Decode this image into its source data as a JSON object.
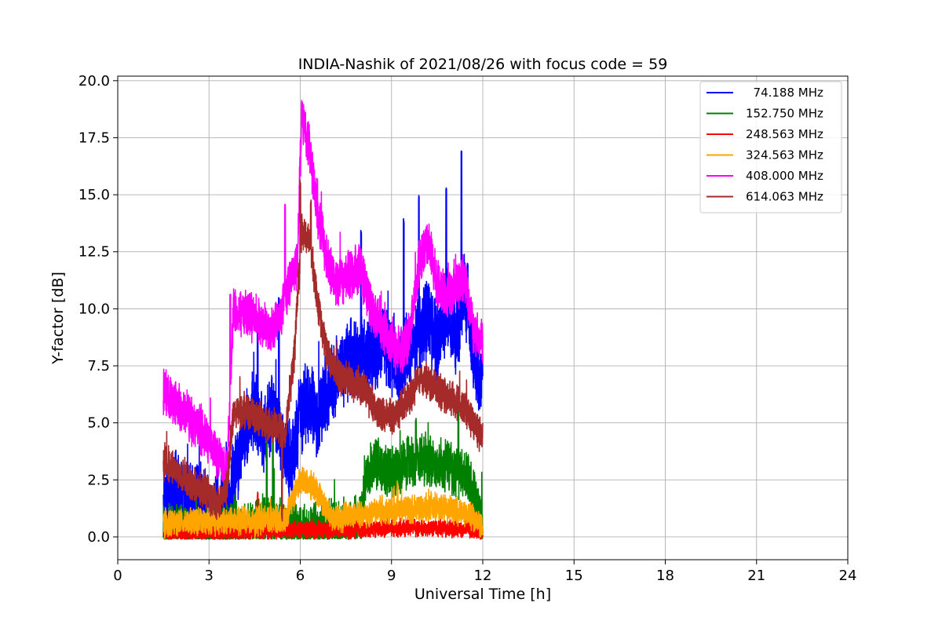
{
  "chart_data": {
    "type": "line",
    "title": "INDIA-Nashik of 2021/08/26 with focus code = 59",
    "xlabel": "Universal Time [h]",
    "ylabel": "Y-factor [dB]",
    "xlim": [
      0,
      24
    ],
    "ylim": [
      -1,
      20.2
    ],
    "xticks": [
      0,
      3,
      6,
      9,
      12,
      15,
      18,
      21,
      24
    ],
    "xtick_labels": [
      "0",
      "3",
      "6",
      "9",
      "12",
      "15",
      "18",
      "21",
      "24"
    ],
    "yticks": [
      0,
      2.5,
      5,
      7.5,
      10,
      12.5,
      15,
      17.5,
      20
    ],
    "ytick_labels": [
      "0.0",
      "2.5",
      "5.0",
      "7.5",
      "10.0",
      "12.5",
      "15.0",
      "17.5",
      "20.0"
    ],
    "grid": true,
    "legend_position": "top-right",
    "series": [
      {
        "name": "  74.188 MHz",
        "color": "#0000ff",
        "x": [
          1.5,
          2.0,
          2.5,
          3.0,
          3.3,
          3.6,
          3.9,
          4.2,
          4.5,
          4.8,
          5.1,
          5.4,
          5.7,
          6.0,
          6.3,
          6.6,
          6.9,
          7.2,
          7.5,
          7.8,
          8.1,
          8.4,
          8.7,
          9.0,
          9.3,
          9.6,
          9.9,
          10.2,
          10.5,
          10.8,
          11.1,
          11.4,
          11.7,
          12.0
        ],
        "y": [
          1.6,
          1.8,
          1.5,
          1.2,
          1.0,
          1.5,
          3.0,
          4.8,
          5.5,
          4.5,
          5.5,
          4.2,
          3.0,
          5.5,
          6.0,
          5.0,
          6.5,
          7.0,
          7.5,
          7.8,
          8.0,
          8.2,
          8.5,
          8.0,
          7.5,
          8.5,
          9.0,
          9.5,
          8.5,
          10.0,
          9.0,
          10.5,
          8.0,
          6.5
        ],
        "noise": 2.0,
        "spikes": [
          [
            1.9,
            3.9
          ],
          [
            4.6,
            9.0
          ],
          [
            5.3,
            10.5
          ],
          [
            8.0,
            13.5
          ],
          [
            9.4,
            14.0
          ],
          [
            9.9,
            15.0
          ],
          [
            10.8,
            15.3
          ],
          [
            11.3,
            17.0
          ],
          [
            11.5,
            12.0
          ]
        ]
      },
      {
        "name": "152.750 MHz",
        "color": "#008000",
        "x": [
          1.5,
          2.0,
          2.5,
          3.0,
          3.5,
          4.0,
          4.5,
          5.0,
          5.5,
          6.0,
          6.5,
          7.0,
          7.5,
          8.0,
          8.2,
          8.5,
          9.0,
          9.5,
          10.0,
          10.5,
          11.0,
          11.5,
          12.0
        ],
        "y": [
          0.3,
          0.3,
          0.2,
          0.2,
          0.3,
          0.4,
          0.5,
          0.6,
          0.5,
          0.2,
          0.3,
          0.5,
          0.6,
          0.7,
          3.0,
          3.2,
          2.8,
          3.2,
          3.5,
          3.2,
          3.0,
          2.5,
          0.5
        ],
        "noise": 1.3,
        "spikes": [
          [
            4.9,
            4.2
          ],
          [
            5.1,
            4.8
          ],
          [
            9.8,
            5.2
          ],
          [
            11.2,
            6.5
          ]
        ]
      },
      {
        "name": "248.563 MHz",
        "color": "#ff0000",
        "x": [
          1.5,
          2.5,
          3.5,
          4.5,
          5.5,
          6.5,
          7.5,
          8.5,
          9.5,
          10.5,
          11.5,
          12.0
        ],
        "y": [
          0.15,
          0.15,
          0.2,
          0.25,
          0.3,
          0.3,
          0.3,
          0.35,
          0.4,
          0.4,
          0.35,
          0.2
        ],
        "noise": 0.45,
        "spikes": [
          [
            4.6,
            2.0
          ]
        ]
      },
      {
        "name": "324.563 MHz",
        "color": "#ffa500",
        "x": [
          1.5,
          2.5,
          3.5,
          4.5,
          5.5,
          6.0,
          6.5,
          7.0,
          7.5,
          8.5,
          9.5,
          10.5,
          11.5,
          12.0
        ],
        "y": [
          0.6,
          0.7,
          0.7,
          0.7,
          0.8,
          2.5,
          2.2,
          0.8,
          0.9,
          1.1,
          1.2,
          1.3,
          1.0,
          0.5
        ],
        "noise": 0.7,
        "spikes": [
          [
            9.2,
            2.5
          ],
          [
            10.3,
            2.0
          ]
        ]
      },
      {
        "name": "408.000 MHz",
        "color": "#ff00ff",
        "x": [
          1.5,
          2.0,
          2.5,
          3.0,
          3.3,
          3.6,
          3.8,
          4.2,
          4.6,
          5.0,
          5.3,
          5.6,
          5.9,
          6.05,
          6.3,
          6.6,
          6.9,
          7.2,
          7.6,
          8.0,
          8.3,
          8.6,
          9.0,
          9.3,
          9.6,
          9.9,
          10.2,
          10.5,
          10.8,
          11.1,
          11.4,
          11.7,
          12.0
        ],
        "y": [
          6.3,
          5.8,
          5.0,
          4.3,
          3.5,
          2.8,
          10.0,
          9.8,
          9.5,
          9.0,
          9.5,
          11.0,
          12.0,
          18.5,
          17.0,
          14.0,
          12.0,
          11.0,
          11.5,
          11.8,
          10.0,
          9.5,
          8.5,
          8.0,
          9.0,
          12.0,
          13.0,
          11.0,
          10.5,
          11.0,
          11.5,
          9.0,
          8.5
        ],
        "noise": 1.2,
        "spikes": [
          [
            3.7,
            10.7
          ],
          [
            5.5,
            14.6
          ],
          [
            6.05,
            19.2
          ]
        ]
      },
      {
        "name": "614.063 MHz",
        "color": "#a52a2a",
        "x": [
          1.5,
          2.0,
          2.5,
          3.0,
          3.3,
          3.6,
          3.8,
          4.3,
          4.8,
          5.2,
          5.5,
          5.8,
          6.05,
          6.3,
          6.6,
          6.9,
          7.3,
          7.7,
          8.1,
          8.5,
          9.0,
          9.5,
          10.0,
          10.5,
          11.0,
          11.5,
          12.0
        ],
        "y": [
          3.3,
          2.8,
          2.3,
          1.8,
          1.5,
          2.2,
          5.5,
          5.5,
          5.0,
          4.8,
          4.5,
          8.0,
          13.5,
          13.0,
          10.0,
          8.0,
          7.0,
          6.8,
          6.5,
          5.5,
          5.2,
          6.0,
          7.0,
          6.5,
          6.0,
          5.5,
          4.2
        ],
        "noise": 0.9,
        "spikes": [
          [
            6.0,
            15.7
          ],
          [
            6.35,
            14.8
          ],
          [
            5.4,
            1.0
          ]
        ]
      }
    ]
  }
}
